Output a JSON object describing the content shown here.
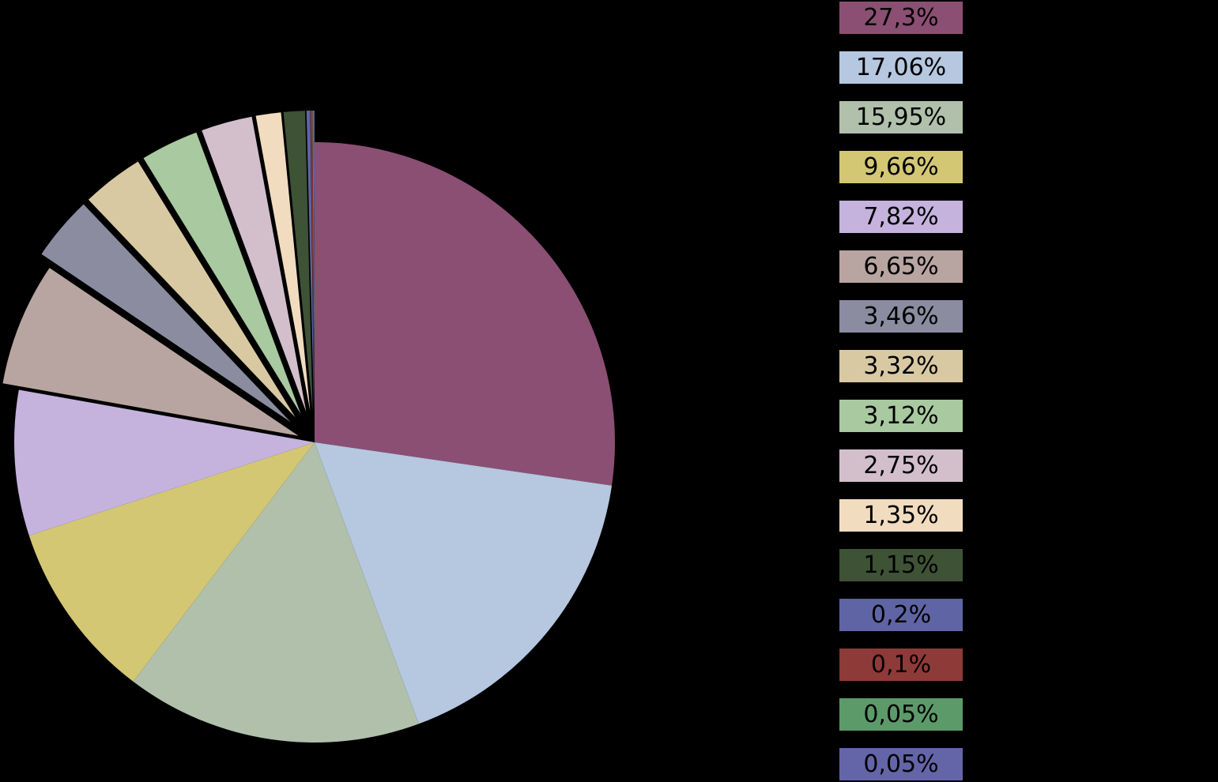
{
  "chart_data": {
    "type": "pie",
    "slices": [
      {
        "label": "27,3%",
        "value": 27.3,
        "color": "#8b4f73"
      },
      {
        "label": "17,06%",
        "value": 17.06,
        "color": "#b6c7e0"
      },
      {
        "label": "15,95%",
        "value": 15.95,
        "color": "#b0c0ab"
      },
      {
        "label": "9,66%",
        "value": 9.66,
        "color": "#d3c774"
      },
      {
        "label": "7,82%",
        "value": 7.82,
        "color": "#c5b3de"
      },
      {
        "label": "6,65%",
        "value": 6.65,
        "color": "#b8a4a0"
      },
      {
        "label": "3,46%",
        "value": 3.46,
        "color": "#8b8ca0"
      },
      {
        "label": "3,32%",
        "value": 3.32,
        "color": "#d8c9a3"
      },
      {
        "label": "3,12%",
        "value": 3.12,
        "color": "#a9c9a0"
      },
      {
        "label": "2,75%",
        "value": 2.75,
        "color": "#d3bfcc"
      },
      {
        "label": "1,35%",
        "value": 1.35,
        "color": "#f1dcc0"
      },
      {
        "label": "1,15%",
        "value": 1.15,
        "color": "#3e5236"
      },
      {
        "label": "0,2%",
        "value": 0.2,
        "color": "#5f64a4"
      },
      {
        "label": "0,1%",
        "value": 0.1,
        "color": "#8e3a38"
      },
      {
        "label": "0,05%",
        "value": 0.05,
        "color": "#5d9a6a"
      },
      {
        "label": "0,05%",
        "value": 0.05,
        "color": "#6464a8"
      }
    ],
    "legend": "right",
    "start_angle": "top, clockwise"
  }
}
